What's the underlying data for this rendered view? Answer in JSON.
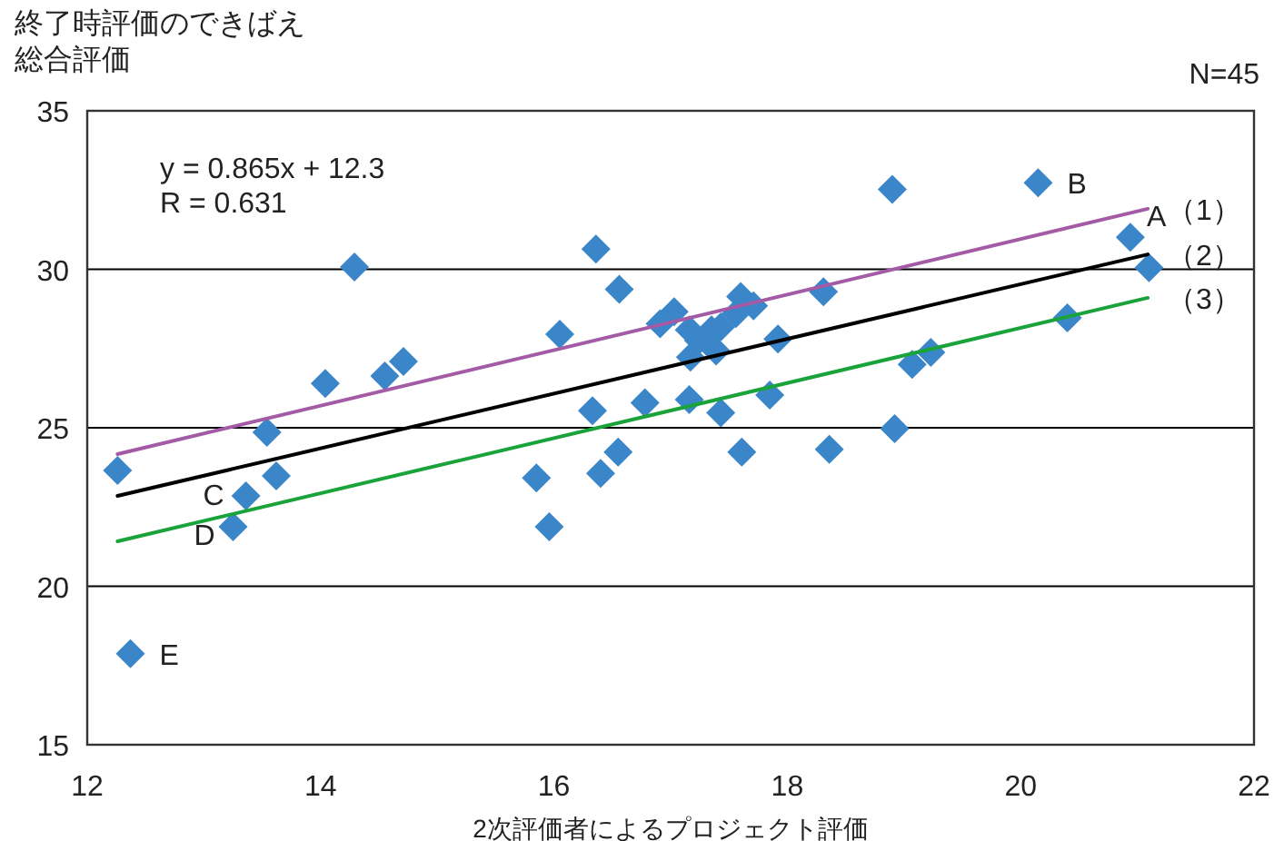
{
  "chart_data": {
    "type": "scatter",
    "ylabel": "終了時評価のできばえ総合評価",
    "xlabel": "2次評価者によるプロジェクト評価",
    "xlim": [
      12,
      22
    ],
    "xticks": [
      12,
      14,
      16,
      18,
      20,
      22
    ],
    "ylim": [
      15,
      35
    ],
    "yticks": [
      15,
      20,
      25,
      30,
      35
    ],
    "grid": "y",
    "series": [
      {
        "marker": "diamond",
        "color": "#3a86c8",
        "x": [
          12.26,
          12.37,
          13.25,
          13.36,
          13.54,
          13.62,
          14.04,
          14.29,
          14.55,
          14.71,
          15.85,
          15.96,
          16.05,
          16.33,
          16.36,
          16.4,
          16.55,
          16.56,
          16.78,
          17.16,
          17.43,
          17.85,
          17.61,
          18.36,
          18.92,
          19.07,
          19.23,
          20.4,
          21.1,
          20.94,
          20.15,
          18.9,
          18.31,
          17.92,
          17.6,
          17.71,
          16.91,
          17.03,
          17.16,
          17.24,
          17.39,
          17.17,
          17.56,
          17.43,
          17.35
        ],
        "values": [
          23.65,
          17.87,
          21.88,
          22.85,
          24.86,
          23.48,
          26.4,
          30.07,
          26.63,
          27.09,
          23.42,
          21.88,
          27.95,
          25.54,
          30.64,
          23.56,
          24.23,
          29.37,
          25.79,
          25.89,
          25.47,
          26.03,
          24.23,
          24.32,
          24.97,
          27.0,
          27.38,
          28.47,
          30.05,
          31.01,
          32.73,
          32.52,
          29.29,
          27.8,
          29.14,
          28.85,
          28.28,
          28.66,
          28.09,
          27.75,
          27.42,
          27.23,
          28.6,
          28.18,
          28.09
        ]
      },
      {
        "type": "line",
        "name": "（1）",
        "color": "#a35ba6",
        "x": [
          12.26,
          21.09
        ],
        "values": [
          24.17,
          31.91
        ]
      },
      {
        "type": "line",
        "name": "（2）",
        "color": "#000000",
        "x": [
          12.26,
          21.09
        ],
        "values": [
          22.85,
          30.47
        ]
      },
      {
        "type": "line",
        "name": "（3）",
        "color": "#1aa33a",
        "x": [
          12.26,
          21.09
        ],
        "values": [
          21.42,
          29.1
        ]
      }
    ],
    "annotations": [
      "y = 0.865x + 12.3",
      "R = 0.631",
      "N=45",
      {
        "text": "A",
        "x": 20.94,
        "y": 31.01
      },
      {
        "text": "B",
        "x": 20.15,
        "y": 32.73
      },
      {
        "text": "C",
        "x": 13.36,
        "y": 22.85
      },
      {
        "text": "D",
        "x": 13.25,
        "y": 21.88
      },
      {
        "text": "E",
        "x": 12.37,
        "y": 17.87
      }
    ]
  }
}
